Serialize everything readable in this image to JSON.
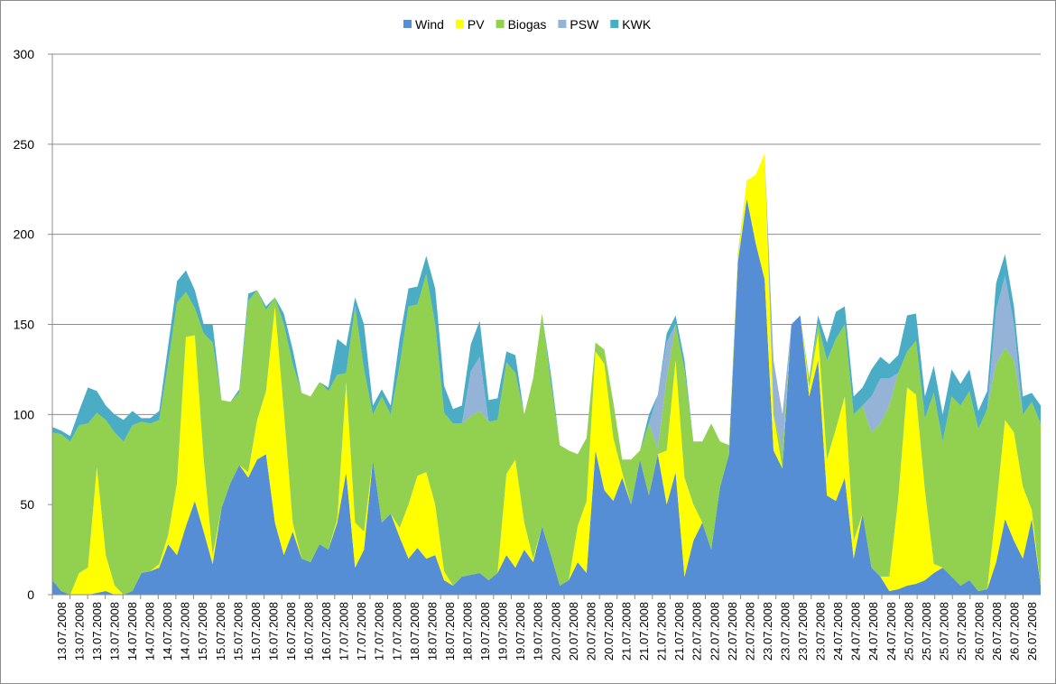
{
  "chart_data": {
    "type": "area",
    "stacked": true,
    "title": "",
    "xlabel": "",
    "ylabel": "",
    "ylim": [
      0,
      300
    ],
    "yticks": [
      0,
      50,
      100,
      150,
      200,
      250,
      300
    ],
    "grid": "horizontal",
    "legend_position": "top",
    "x_tick_labels": [
      "13.07.2008",
      "13.07.2008",
      "13.07.2008",
      "13.07.2008",
      "14.07.2008",
      "14.07.2008",
      "14.07.2008",
      "14.07.2008",
      "15.07.2008",
      "15.07.2008",
      "15.07.2008",
      "15.07.2008",
      "16.07.2008",
      "16.07.2008",
      "16.07.2008",
      "16.07.2008",
      "17.07.2008",
      "17.07.2008",
      "17.07.2008",
      "17.07.2008",
      "18.07.2008",
      "18.07.2008",
      "18.07.2008",
      "18.07.2008",
      "19.07.2008",
      "19.07.2008",
      "19.07.2008",
      "19.07.2008",
      "20.07.2008",
      "20.07.2008",
      "20.07.2008",
      "20.07.2008",
      "21.07.2008",
      "21.07.2008",
      "21.07.2008",
      "21.07.2008",
      "22.07.2008",
      "22.07.2008",
      "22.07.2008",
      "22.07.2008",
      "23.07.2008",
      "23.07.2008",
      "23.07.2008",
      "23.07.2008",
      "24.07.2008",
      "24.07.2008",
      "24.07.2008",
      "24.07.2008",
      "25.07.2008",
      "25.07.2008",
      "25.07.2008",
      "25.07.2008",
      "26.07.2008",
      "26.07.2008",
      "26.07.2008",
      "26.07.2008"
    ],
    "x_points": 112,
    "series": [
      {
        "name": "Wind",
        "color": "#558ed5",
        "values": [
          8,
          2,
          0,
          0,
          0,
          1,
          2,
          0,
          0,
          2,
          12,
          13,
          15,
          28,
          22,
          38,
          52,
          35,
          17,
          48,
          62,
          72,
          65,
          75,
          78,
          40,
          22,
          35,
          20,
          18,
          28,
          25,
          40,
          68,
          15,
          25,
          75,
          40,
          45,
          32,
          20,
          26,
          20,
          22,
          8,
          5,
          10,
          11,
          12,
          8,
          12,
          22,
          15,
          25,
          18,
          38,
          22,
          5,
          8,
          18,
          12,
          80,
          58,
          52,
          65,
          50,
          75,
          55,
          78,
          50,
          68,
          10,
          30,
          40,
          25,
          60,
          78,
          185,
          220,
          195,
          175,
          80,
          70,
          150,
          155,
          110,
          130,
          55,
          52,
          65,
          20,
          45,
          15,
          10,
          2,
          3,
          5,
          6,
          8,
          12,
          15,
          10,
          5,
          8,
          2,
          3,
          18,
          42,
          30,
          20,
          42,
          5
        ]
      },
      {
        "name": "PV",
        "color": "#ffff00",
        "values": [
          0,
          0,
          0,
          12,
          15,
          70,
          20,
          5,
          0,
          0,
          0,
          0,
          2,
          5,
          40,
          105,
          92,
          40,
          5,
          0,
          0,
          0,
          3,
          22,
          35,
          120,
          80,
          5,
          0,
          0,
          0,
          0,
          2,
          50,
          25,
          10,
          0,
          0,
          0,
          5,
          30,
          40,
          48,
          28,
          5,
          0,
          0,
          0,
          0,
          0,
          0,
          45,
          60,
          15,
          2,
          0,
          0,
          0,
          0,
          20,
          40,
          55,
          70,
          35,
          3,
          0,
          0,
          0,
          0,
          30,
          62,
          55,
          20,
          0,
          0,
          0,
          0,
          2,
          10,
          38,
          70,
          20,
          0,
          0,
          0,
          5,
          15,
          20,
          40,
          45,
          10,
          0,
          0,
          0,
          8,
          50,
          110,
          105,
          50,
          5,
          0,
          0,
          0,
          0,
          0,
          0,
          30,
          55,
          60,
          40,
          5,
          0
        ]
      },
      {
        "name": "Biogas",
        "color": "#92d050",
        "values": [
          82,
          87,
          85,
          82,
          80,
          30,
          75,
          85,
          85,
          92,
          84,
          82,
          80,
          95,
          100,
          25,
          15,
          70,
          118,
          60,
          45,
          40,
          95,
          72,
          45,
          5,
          48,
          88,
          92,
          92,
          90,
          88,
          80,
          5,
          120,
          90,
          25,
          70,
          55,
          90,
          110,
          95,
          110,
          100,
          88,
          90,
          85,
          88,
          90,
          88,
          85,
          62,
          48,
          60,
          100,
          118,
          95,
          78,
          72,
          40,
          35,
          5,
          8,
          20,
          7,
          25,
          5,
          40,
          3,
          40,
          20,
          60,
          35,
          45,
          70,
          25,
          5,
          2,
          0,
          0,
          0,
          0,
          10,
          0,
          0,
          5,
          5,
          55,
          50,
          40,
          70,
          60,
          75,
          85,
          95,
          70,
          20,
          30,
          40,
          95,
          70,
          100,
          100,
          105,
          90,
          100,
          80,
          40,
          40,
          40,
          60,
          90
        ]
      },
      {
        "name": "PSW",
        "color": "#95b3d7",
        "values": [
          0,
          0,
          0,
          0,
          0,
          0,
          0,
          0,
          0,
          0,
          0,
          0,
          0,
          0,
          0,
          0,
          0,
          0,
          0,
          0,
          0,
          0,
          0,
          0,
          0,
          0,
          0,
          0,
          0,
          0,
          0,
          0,
          0,
          0,
          0,
          0,
          0,
          0,
          0,
          0,
          0,
          0,
          0,
          0,
          0,
          0,
          0,
          25,
          30,
          0,
          0,
          0,
          0,
          0,
          0,
          0,
          0,
          0,
          0,
          0,
          0,
          0,
          0,
          0,
          0,
          0,
          0,
          0,
          30,
          20,
          0,
          0,
          0,
          0,
          0,
          0,
          0,
          0,
          0,
          0,
          0,
          30,
          20,
          0,
          0,
          0,
          0,
          0,
          0,
          0,
          0,
          0,
          20,
          25,
          15,
          0,
          0,
          0,
          0,
          0,
          0,
          0,
          0,
          0,
          0,
          0,
          30,
          40,
          20,
          0,
          0,
          0
        ]
      },
      {
        "name": "KWK",
        "color": "#4bacc6",
        "values": [
          3,
          2,
          3,
          8,
          20,
          12,
          8,
          10,
          12,
          8,
          2,
          3,
          5,
          10,
          12,
          12,
          10,
          5,
          10,
          0,
          0,
          2,
          4,
          0,
          2,
          0,
          6,
          8,
          0,
          0,
          0,
          2,
          20,
          15,
          5,
          25,
          5,
          4,
          5,
          15,
          10,
          10,
          10,
          20,
          15,
          8,
          10,
          15,
          20,
          12,
          12,
          6,
          10,
          0,
          0,
          0,
          5,
          0,
          0,
          0,
          0,
          0,
          0,
          0,
          0,
          0,
          0,
          5,
          0,
          5,
          5,
          5,
          0,
          0,
          0,
          0,
          0,
          0,
          0,
          0,
          0,
          0,
          0,
          0,
          0,
          0,
          5,
          10,
          15,
          10,
          10,
          10,
          15,
          12,
          8,
          10,
          20,
          15,
          12,
          15,
          15,
          15,
          12,
          12,
          10,
          10,
          15,
          12,
          10,
          10,
          5,
          10
        ]
      }
    ]
  }
}
